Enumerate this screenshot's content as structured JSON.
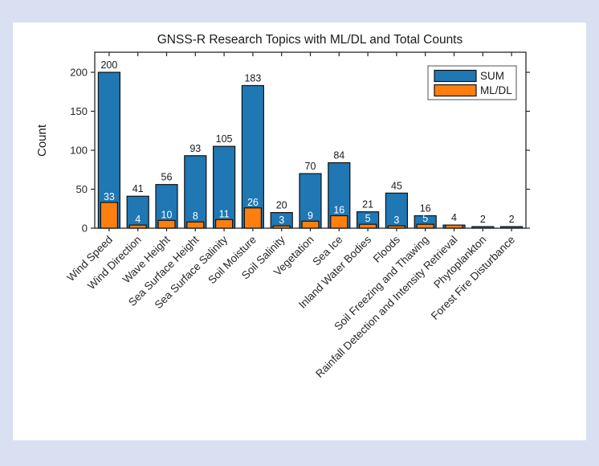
{
  "window": {
    "background_color": "#d9e0f2",
    "panel_background_color": "#ffffff"
  },
  "chart_data": {
    "type": "bar",
    "bar_mode": "overlaid",
    "title": "GNSS-R Research Topics with ML/DL and Total Counts",
    "xlabel": "",
    "ylabel": "Count",
    "ylim": [
      0,
      225
    ],
    "yticks": [
      0,
      50,
      100,
      150,
      200
    ],
    "grid": false,
    "axis_color": "#262626",
    "tick_label_color": "#262626",
    "categories": [
      "Wind Speed",
      "Wind Direction",
      "Wave Height",
      "Sea Surface Height",
      "Sea Surface Salinity",
      "Soil Moisture",
      "Soil Salinity",
      "Vegetation",
      "Sea Ice",
      "Inland Water Bodies",
      "Floods",
      "Soil Freezing and Thawing",
      "Rainfall Detection and Intensity Retrieval",
      "Phytoplankton",
      "Forest Fire Disturbance"
    ],
    "series": [
      {
        "name": "SUM",
        "color": "#1f77b4",
        "edge_color": "#111111",
        "values": [
          200,
          41,
          56,
          93,
          105,
          183,
          20,
          70,
          84,
          21,
          45,
          16,
          4,
          2,
          2
        ]
      },
      {
        "name": "ML/DL",
        "color": "#ff7f0e",
        "edge_color": "#111111",
        "values": [
          33,
          4,
          10,
          8,
          11,
          26,
          3,
          9,
          16,
          5,
          3,
          5,
          4,
          0,
          0
        ]
      }
    ],
    "bar_value_labels": {
      "sum_label_color": "#1a1a1a",
      "ml_label_color": "#ffffff"
    },
    "legend": {
      "position": "top-right",
      "border_color": "#6e6e6e",
      "entries": [
        {
          "label": "SUM",
          "color": "#1f77b4"
        },
        {
          "label": "ML/DL",
          "color": "#ff7f0e"
        }
      ]
    }
  }
}
